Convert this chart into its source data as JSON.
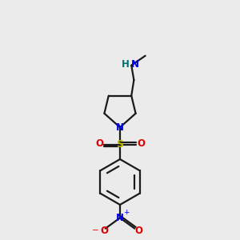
{
  "bg_color": "#ebebeb",
  "bond_color": "#1a1a1a",
  "N_color": "#0000ee",
  "O_color": "#dd0000",
  "S_color": "#bbbb00",
  "H_color": "#007070",
  "fig_width": 3.0,
  "fig_height": 3.0,
  "dpi": 100,
  "xlim": [
    3.0,
    7.0
  ],
  "ylim": [
    0.3,
    9.7
  ],
  "bond_lw": 1.6,
  "font_size": 8.5
}
